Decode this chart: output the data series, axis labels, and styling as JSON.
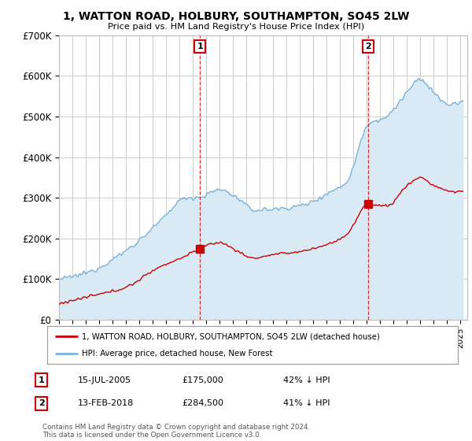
{
  "title": "1, WATTON ROAD, HOLBURY, SOUTHAMPTON, SO45 2LW",
  "subtitle": "Price paid vs. HM Land Registry's House Price Index (HPI)",
  "ylim": [
    0,
    700000
  ],
  "yticks": [
    0,
    100000,
    200000,
    300000,
    400000,
    500000,
    600000,
    700000
  ],
  "ytick_labels": [
    "£0",
    "£100K",
    "£200K",
    "£300K",
    "£400K",
    "£500K",
    "£600K",
    "£700K"
  ],
  "xlim_start": 1995.0,
  "xlim_end": 2025.5,
  "sale1_x": 2005.54,
  "sale1_y": 175000,
  "sale1_label": "1",
  "sale1_date": "15-JUL-2005",
  "sale1_price": "£175,000",
  "sale1_hpi": "42% ↓ HPI",
  "sale2_x": 2018.12,
  "sale2_y": 284500,
  "sale2_label": "2",
  "sale2_date": "13-FEB-2018",
  "sale2_price": "£284,500",
  "sale2_hpi": "41% ↓ HPI",
  "line_red_color": "#cc0000",
  "line_blue_color": "#7ab3d9",
  "fill_blue_color": "#daeaf5",
  "legend_label_red": "1, WATTON ROAD, HOLBURY, SOUTHAMPTON, SO45 2LW (detached house)",
  "legend_label_blue": "HPI: Average price, detached house, New Forest",
  "footer": "Contains HM Land Registry data © Crown copyright and database right 2024.\nThis data is licensed under the Open Government Licence v3.0.",
  "bg_color": "#ffffff",
  "grid_color": "#cccccc"
}
